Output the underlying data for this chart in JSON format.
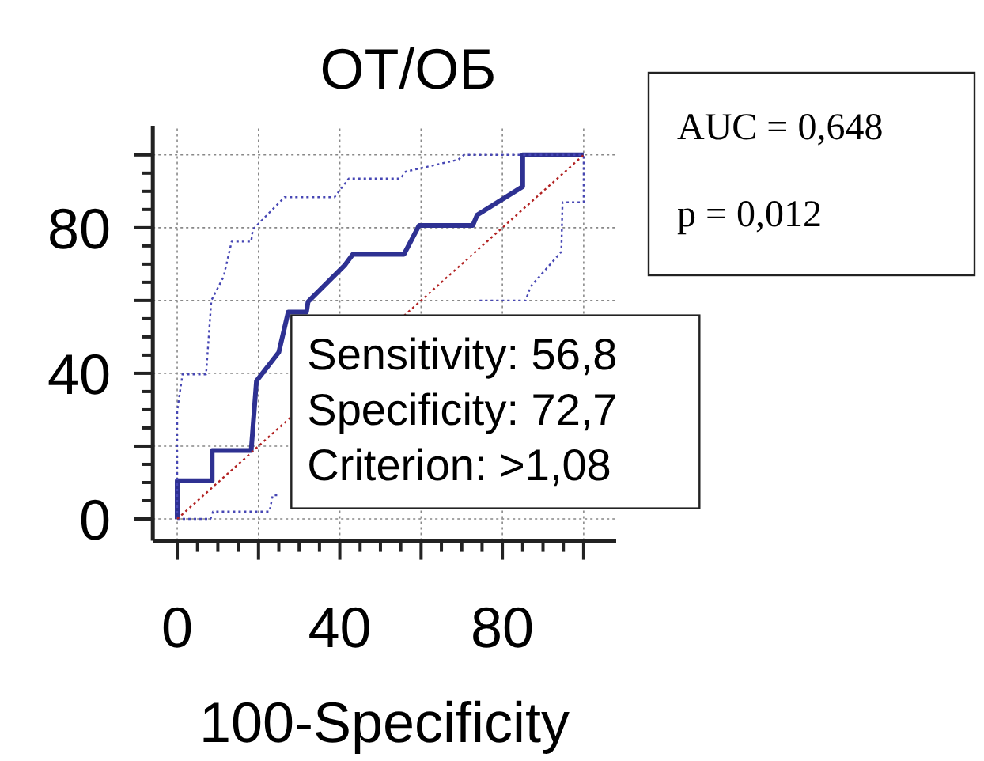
{
  "chart_data": {
    "type": "line",
    "title": "ОТ/ОБ",
    "xlabel": "100-Specificity",
    "xlim": [
      -6,
      108
    ],
    "ylim": [
      -6,
      108
    ],
    "xticks": [
      0,
      {
        "value": 5,
        "label": null
      },
      {
        "value": 10,
        "label": null
      },
      {
        "value": 15,
        "label": null
      },
      {
        "value": 20,
        "label": null
      },
      {
        "value": 25,
        "label": null
      },
      {
        "value": 30,
        "label": null
      },
      {
        "value": 35,
        "label": null
      },
      40,
      {
        "value": 45,
        "label": null
      },
      {
        "value": 50,
        "label": null
      },
      {
        "value": 55,
        "label": null
      },
      {
        "value": 60,
        "label": null
      },
      {
        "value": 65,
        "label": null
      },
      {
        "value": 70,
        "label": null
      },
      {
        "value": 75,
        "label": null
      },
      80,
      {
        "value": 85,
        "label": null
      },
      {
        "value": 90,
        "label": null
      },
      {
        "value": 95,
        "label": null
      },
      {
        "value": 100,
        "label": null
      }
    ],
    "yticks": [
      0,
      {
        "value": 5,
        "label": null
      },
      {
        "value": 10,
        "label": null
      },
      {
        "value": 15,
        "label": null
      },
      {
        "value": 20,
        "label": null
      },
      {
        "value": 25,
        "label": null
      },
      {
        "value": 30,
        "label": null
      },
      {
        "value": 35,
        "label": null
      },
      40,
      {
        "value": 45,
        "label": null
      },
      {
        "value": 50,
        "label": null
      },
      {
        "value": 55,
        "label": null
      },
      {
        "value": 60,
        "label": null
      },
      {
        "value": 65,
        "label": null
      },
      {
        "value": 70,
        "label": null
      },
      {
        "value": 75,
        "label": null
      },
      80,
      {
        "value": 85,
        "label": null
      },
      {
        "value": 90,
        "label": null
      },
      {
        "value": 95,
        "label": null
      },
      {
        "value": 100,
        "label": null
      }
    ],
    "grid": true,
    "marker": "none",
    "series": [
      {
        "color": "#2e3192",
        "line_style": "solid",
        "x": [
          0,
          0,
          8.6,
          8.6,
          18.2,
          19.5,
          25,
          27.3,
          31.8,
          32.2,
          41.3,
          43.2,
          55.8,
          59.5,
          72.7,
          73.8,
          85,
          85,
          100
        ],
        "values": [
          0,
          10.5,
          10.5,
          18.8,
          18.8,
          37.9,
          45.8,
          56.8,
          56.8,
          59.7,
          69.8,
          72.7,
          72.7,
          80.6,
          80.6,
          83.5,
          91.3,
          100,
          100
        ]
      },
      {
        "color": "#4646b4",
        "line_style": "dotted",
        "x": [
          0,
          0,
          1.3,
          7.1,
          8.4,
          11.4,
          13.4,
          18.2,
          18.6,
          26.4,
          38.7,
          42.2,
          54.9,
          56.2,
          69.2,
          70.5,
          100
        ],
        "values": [
          0,
          29.6,
          39.7,
          39.7,
          60,
          66.5,
          76.2,
          76.2,
          79.5,
          88.4,
          88.4,
          93.5,
          93.5,
          95.4,
          98.7,
          100,
          100
        ]
      },
      {
        "color": "#4646b4",
        "line_style": "dotted",
        "x": [
          0,
          8.2,
          8.8,
          22.7,
          23.5,
          25,
          50,
          74.4,
          85.7,
          87,
          94.5,
          94.8,
          100,
          100
        ],
        "values": [
          0,
          0,
          2,
          2,
          6.5,
          6.5,
          null,
          60,
          60,
          63.9,
          73.4,
          87,
          87,
          100
        ]
      },
      {
        "color": "#b22222",
        "line_style": "dotted",
        "x": [
          0,
          100
        ],
        "values": [
          0,
          100
        ]
      }
    ],
    "annotations": [
      {
        "text": "Sensitivity: 56,8\nSpecificity: 72,7\nCriterion: >1,08",
        "x": 27.3,
        "y": 56.8
      },
      "AUC = 0,648\np = 0,012"
    ]
  }
}
